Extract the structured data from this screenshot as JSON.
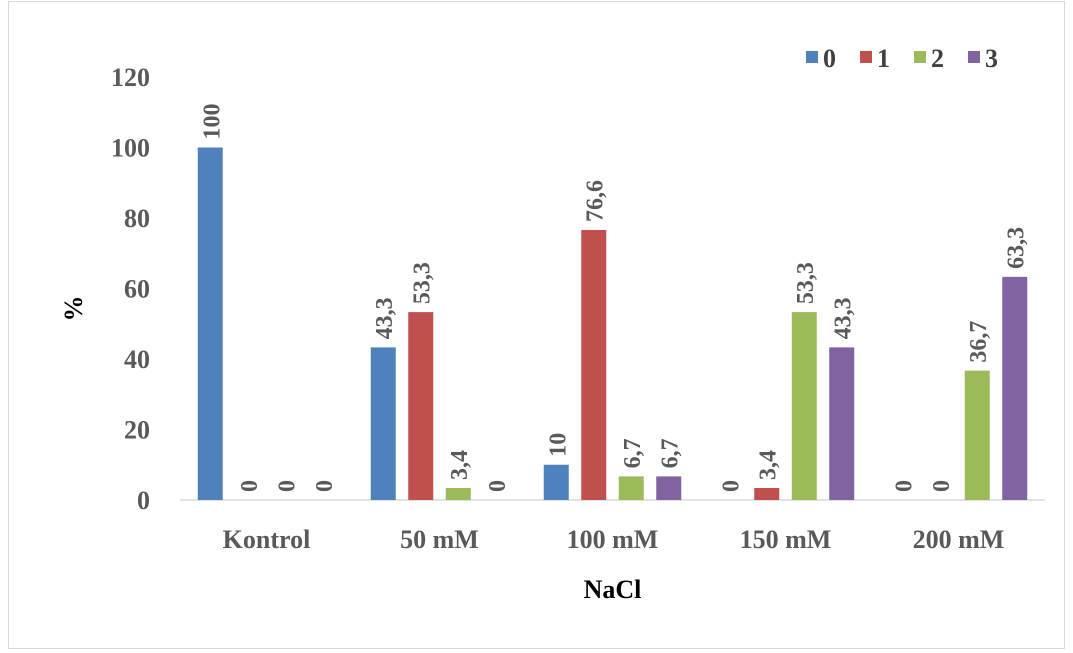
{
  "chart_data": {
    "type": "bar",
    "categories": [
      "Kontrol",
      "50 mM",
      "100 mM",
      "150 mM",
      "200 mM"
    ],
    "series": [
      {
        "name": "0",
        "color": "#4f81bd",
        "values": [
          100,
          43.3,
          10,
          0,
          0
        ],
        "labels": [
          "100",
          "43,3",
          "10",
          "0",
          "0"
        ]
      },
      {
        "name": "1",
        "color": "#c0504d",
        "values": [
          0,
          53.3,
          76.6,
          3.4,
          0
        ],
        "labels": [
          "0",
          "53,3",
          "76,6",
          "3,4",
          "0"
        ]
      },
      {
        "name": "2",
        "color": "#9bbb59",
        "values": [
          0,
          3.4,
          6.7,
          53.3,
          36.7
        ],
        "labels": [
          "0",
          "3,4",
          "6,7",
          "53,3",
          "36,7"
        ]
      },
      {
        "name": "3",
        "color": "#8064a2",
        "values": [
          0,
          0,
          6.7,
          43.3,
          63.3
        ],
        "labels": [
          "0",
          "0",
          "6,7",
          "43,3",
          "63,3"
        ]
      }
    ],
    "yticks": [
      "0",
      "20",
      "40",
      "60",
      "80",
      "100",
      "120"
    ],
    "ylim": [
      0,
      120
    ],
    "xlabel": "NaCl",
    "ylabel": "%",
    "legend_position": "top-right",
    "grid": false
  }
}
